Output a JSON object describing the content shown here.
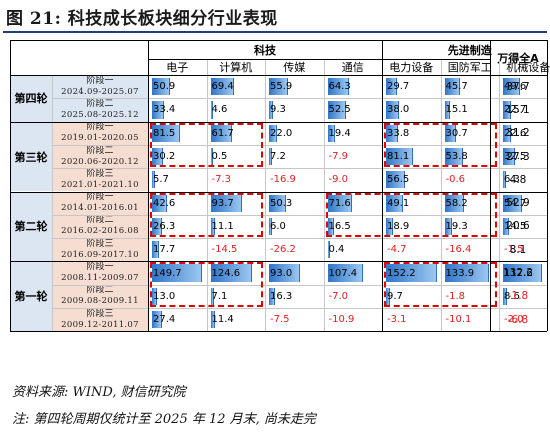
{
  "figure": {
    "title": "图 21:  科技成长板块细分行业表现"
  },
  "header": {
    "groups": [
      "科技",
      "先进制造"
    ],
    "total_label": "万得全A",
    "columns": [
      "电子",
      "计算机",
      "传媒",
      "通信",
      "电力设备",
      "国防军工",
      "机械设备"
    ]
  },
  "rounds": [
    {
      "label": "第四轮",
      "stages": [
        {
          "name": "阶段一",
          "dates": "2024.09-2025.07",
          "values": [
            "50.9",
            "69.4",
            "55.9",
            "64.3",
            "29.7",
            "45.7",
            "49.6"
          ],
          "total": "37.7"
        },
        {
          "name": "阶段二",
          "dates": "2025.08-2025.12",
          "values": [
            "33.4",
            "4.6",
            "9.3",
            "52.5",
            "38.0",
            "15.1",
            "22.7"
          ],
          "total": "15.1"
        }
      ]
    },
    {
      "label": "第三轮",
      "stages": [
        {
          "name": "阶段一",
          "dates": "2019.01-2020.05",
          "values": [
            "81.5",
            "61.7",
            "22.0",
            "19.4",
            "33.8",
            "30.7",
            "22.6"
          ],
          "total": "31.2"
        },
        {
          "name": "阶段二",
          "dates": "2020.06-2020.12",
          "values": [
            "30.2",
            "0.5",
            "7.2",
            "-7.9",
            "81.1",
            "53.8",
            "32.5"
          ],
          "total": "27.3"
        },
        {
          "name": "阶段三",
          "dates": "2021.01-2021.10",
          "values": [
            "5.7",
            "-7.3",
            "-16.9",
            "-9.0",
            "56.5",
            "-0.6",
            "6.3"
          ],
          "total": "4.8"
        }
      ]
    },
    {
      "label": "第二轮",
      "stages": [
        {
          "name": "阶段一",
          "dates": "2014.01-2016.01",
          "values": [
            "42.6",
            "93.7",
            "50.3",
            "71.6",
            "49.1",
            "58.2",
            "54.7"
          ],
          "total": "52.9"
        },
        {
          "name": "阶段二",
          "dates": "2016.02-2016.08",
          "values": [
            "26.3",
            "11.1",
            "6.0",
            "16.5",
            "18.9",
            "19.3",
            "14.5"
          ],
          "total": "20.6"
        },
        {
          "name": "阶段三",
          "dates": "2016.09-2017.10",
          "values": [
            "17.7",
            "-14.5",
            "-26.2",
            "0.4",
            "-4.7",
            "-16.4",
            "-1.5"
          ],
          "total": "8.1"
        }
      ]
    },
    {
      "label": "第一轮",
      "stages": [
        {
          "name": "阶段一",
          "dates": "2008.11-2009.07",
          "values": [
            "149.7",
            "124.6",
            "93.0",
            "107.4",
            "152.2",
            "133.9",
            "117.6"
          ],
          "total": "132.2"
        },
        {
          "name": "阶段二",
          "dates": "2009.08-2009.11",
          "values": [
            "13.0",
            "7.1",
            "16.3",
            "-7.0",
            "9.7",
            "-1.8",
            "8.6"
          ],
          "total": "-1.8"
        },
        {
          "name": "阶段三",
          "dates": "2009.12-2011.07",
          "values": [
            "27.4",
            "11.4",
            "-7.5",
            "-10.9",
            "-3.1",
            "-10.1",
            "-2.0"
          ],
          "total": "-6.8"
        }
      ]
    }
  ],
  "highlight_color": "#e00000",
  "bar_color": "#2e75c8",
  "negative_color": "#e02020",
  "footer": {
    "source": "资料来源: WIND, 财信研究院",
    "note": "注: 第四轮周期仅统计至 2025 年 12 月末, 尚未走完"
  }
}
